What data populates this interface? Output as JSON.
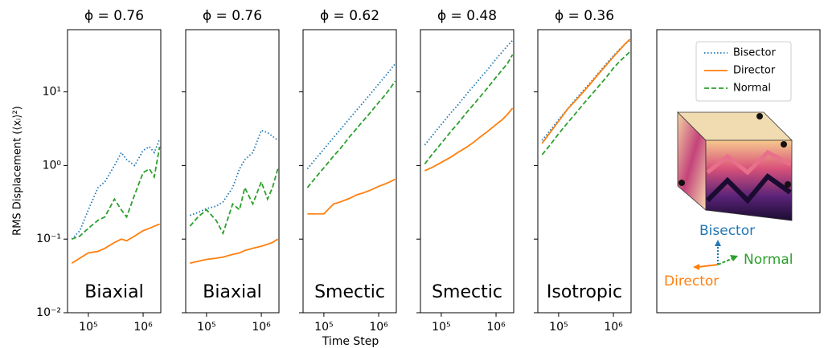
{
  "figure": {
    "y_label": "RMS Displacement (⟨xᵢ⟩²)",
    "x_label": "Time Step"
  },
  "axes_diagram": {
    "labels": [
      "Bisector",
      "Director",
      "Normal"
    ]
  },
  "chart_data": [
    {
      "type": "line",
      "title": "ϕ = 0.76",
      "annotation": "Biaxial",
      "xscale": "log",
      "yscale": "log",
      "x": [
        50000,
        70000,
        100000,
        150000,
        200000,
        300000,
        400000,
        500000,
        700000,
        1000000,
        1300000,
        1600000,
        2000000
      ],
      "xlim": [
        41700,
        2100000
      ],
      "ylim": [
        0.01,
        70
      ],
      "xticks": [
        {
          "value": 100000,
          "label": "10⁵"
        },
        {
          "value": 1000000,
          "label": "10⁶"
        }
      ],
      "yticks": [
        {
          "value": 0.01,
          "label": "10⁻²"
        },
        {
          "value": 0.1,
          "label": "10⁻¹"
        },
        {
          "value": 1,
          "label": "10⁰"
        },
        {
          "value": 10,
          "label": "10¹"
        }
      ],
      "series": [
        {
          "name": "Bisector",
          "color": "#1f77b4",
          "style": "dotted",
          "values": [
            0.1,
            0.13,
            0.25,
            0.5,
            0.6,
            1.0,
            1.5,
            1.2,
            1.0,
            1.6,
            1.8,
            1.5,
            2.3
          ]
        },
        {
          "name": "Director",
          "color": "#ff7f0e",
          "style": "solid",
          "values": [
            0.047,
            0.055,
            0.065,
            0.068,
            0.075,
            0.09,
            0.1,
            0.095,
            0.11,
            0.13,
            0.14,
            0.15,
            0.16
          ]
        },
        {
          "name": "Normal",
          "color": "#2ca02c",
          "style": "dashed",
          "values": [
            0.1,
            0.11,
            0.14,
            0.18,
            0.2,
            0.35,
            0.25,
            0.2,
            0.4,
            0.8,
            0.9,
            0.7,
            1.8
          ]
        }
      ]
    },
    {
      "type": "line",
      "title": "ϕ = 0.76",
      "annotation": "Biaxial",
      "xscale": "log",
      "yscale": "log",
      "x": [
        50000,
        70000,
        100000,
        150000,
        200000,
        300000,
        400000,
        500000,
        700000,
        1000000,
        1300000,
        1600000,
        2000000
      ],
      "xlim": [
        41700,
        2100000
      ],
      "ylim": [
        0.01,
        70
      ],
      "xticks": [
        {
          "value": 100000,
          "label": "10⁵"
        },
        {
          "value": 1000000,
          "label": "10⁶"
        }
      ],
      "yticks": [
        0.01,
        0.1,
        1,
        10
      ],
      "series": [
        {
          "name": "Bisector",
          "color": "#1f77b4",
          "style": "dotted",
          "values": [
            0.21,
            0.23,
            0.26,
            0.28,
            0.32,
            0.5,
            0.9,
            1.2,
            1.5,
            3.0,
            2.8,
            2.5,
            2.2
          ]
        },
        {
          "name": "Director",
          "color": "#ff7f0e",
          "style": "solid",
          "values": [
            0.047,
            0.05,
            0.053,
            0.055,
            0.057,
            0.062,
            0.065,
            0.07,
            0.075,
            0.08,
            0.085,
            0.09,
            0.1
          ]
        },
        {
          "name": "Normal",
          "color": "#2ca02c",
          "style": "dashed",
          "values": [
            0.15,
            0.2,
            0.25,
            0.18,
            0.12,
            0.3,
            0.25,
            0.5,
            0.3,
            0.6,
            0.35,
            0.5,
            0.9
          ]
        }
      ]
    },
    {
      "type": "line",
      "title": "ϕ = 0.62",
      "annotation": "Smectic",
      "xscale": "log",
      "yscale": "log",
      "x": [
        50000,
        70000,
        100000,
        150000,
        200000,
        300000,
        400000,
        500000,
        700000,
        1000000,
        1300000,
        1600000,
        2000000
      ],
      "xlim": [
        41700,
        2100000
      ],
      "ylim": [
        0.01,
        70
      ],
      "xticks": [
        {
          "value": 100000,
          "label": "10⁵"
        },
        {
          "value": 1000000,
          "label": "10⁶"
        }
      ],
      "yticks": [
        0.01,
        0.1,
        1,
        10
      ],
      "series": [
        {
          "name": "Bisector",
          "color": "#1f77b4",
          "style": "dotted",
          "values": [
            0.9,
            1.22,
            1.67,
            2.4,
            3.08,
            4.43,
            5.7,
            6.9,
            9.3,
            12.8,
            16.2,
            19.5,
            24
          ]
        },
        {
          "name": "Director",
          "color": "#ff7f0e",
          "style": "solid",
          "values": [
            0.22,
            0.22,
            0.22,
            0.3,
            0.32,
            0.36,
            0.4,
            0.42,
            0.46,
            0.52,
            0.56,
            0.6,
            0.65
          ]
        },
        {
          "name": "Normal",
          "color": "#2ca02c",
          "style": "dashed",
          "values": [
            0.5,
            0.68,
            0.93,
            1.34,
            1.7,
            2.5,
            3.2,
            3.9,
            5.2,
            7.2,
            9.0,
            11,
            14
          ]
        }
      ]
    },
    {
      "type": "line",
      "title": "ϕ = 0.48",
      "annotation": "Smectic",
      "xscale": "log",
      "yscale": "log",
      "x": [
        50000,
        70000,
        100000,
        150000,
        200000,
        300000,
        400000,
        500000,
        700000,
        1000000,
        1300000,
        1600000,
        2000000
      ],
      "xlim": [
        41700,
        2100000
      ],
      "ylim": [
        0.01,
        70
      ],
      "xticks": [
        {
          "value": 100000,
          "label": "10⁵"
        },
        {
          "value": 1000000,
          "label": "10⁶"
        }
      ],
      "yticks": [
        0.01,
        0.1,
        1,
        10
      ],
      "series": [
        {
          "name": "Bisector",
          "color": "#1f77b4",
          "style": "dotted",
          "values": [
            1.9,
            2.6,
            3.6,
            5.2,
            6.6,
            9.6,
            12.3,
            15,
            20,
            28,
            35,
            42,
            50
          ]
        },
        {
          "name": "Director",
          "color": "#ff7f0e",
          "style": "solid",
          "values": [
            0.85,
            0.95,
            1.1,
            1.3,
            1.5,
            1.8,
            2.1,
            2.4,
            2.9,
            3.6,
            4.2,
            4.9,
            6
          ]
        },
        {
          "name": "Normal",
          "color": "#2ca02c",
          "style": "dashed",
          "values": [
            1.05,
            1.45,
            2.0,
            2.9,
            3.7,
            5.4,
            6.9,
            8.4,
            11.3,
            15.8,
            20,
            24,
            32
          ]
        }
      ]
    },
    {
      "type": "line",
      "title": "ϕ = 0.36",
      "annotation": "Isotropic",
      "xscale": "log",
      "yscale": "log",
      "x": [
        50000,
        70000,
        100000,
        150000,
        200000,
        300000,
        400000,
        500000,
        700000,
        1000000,
        1300000,
        1600000,
        2000000
      ],
      "xlim": [
        41700,
        2100000
      ],
      "ylim": [
        0.01,
        70
      ],
      "xticks": [
        {
          "value": 100000,
          "label": "10⁵"
        },
        {
          "value": 1000000,
          "label": "10⁶"
        }
      ],
      "yticks": [
        0.01,
        0.1,
        1,
        10
      ],
      "series": [
        {
          "name": "Bisector",
          "color": "#1f77b4",
          "style": "dotted",
          "values": [
            2.2,
            3.0,
            4.2,
            6.0,
            7.8,
            11,
            14,
            17,
            23,
            31,
            38,
            44,
            50
          ]
        },
        {
          "name": "Director",
          "color": "#ff7f0e",
          "style": "solid",
          "values": [
            2.0,
            2.8,
            4.0,
            6.0,
            7.5,
            10.5,
            13.5,
            16.5,
            22,
            30,
            37,
            44,
            52
          ]
        },
        {
          "name": "Normal",
          "color": "#2ca02c",
          "style": "dashed",
          "values": [
            1.4,
            1.9,
            2.7,
            3.9,
            5.0,
            7.2,
            9.2,
            11.2,
            15,
            21,
            26,
            30,
            35
          ]
        }
      ]
    }
  ]
}
